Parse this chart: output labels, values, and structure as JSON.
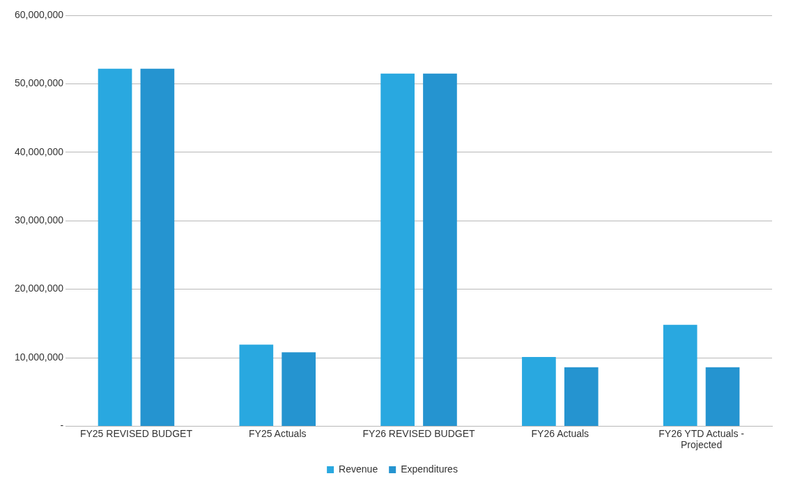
{
  "chart_data": {
    "type": "bar",
    "categories": [
      "FY25 REVISED BUDGET",
      "FY25 Actuals",
      "FY26 REVISED BUDGET",
      "FY26 Actuals",
      "FY26 YTD Actuals - Projected"
    ],
    "series": [
      {
        "name": "Revenue",
        "color": "#29a8e0",
        "values": [
          52200000,
          11900000,
          51500000,
          10100000,
          14800000
        ]
      },
      {
        "name": "Expenditures",
        "color": "#2594d0",
        "values": [
          52200000,
          10800000,
          51500000,
          8600000,
          8600000
        ]
      }
    ],
    "ylim": [
      0,
      60000000
    ],
    "yticks": [
      {
        "value": 0,
        "label": "-"
      },
      {
        "value": 10000000,
        "label": "10,000,000"
      },
      {
        "value": 20000000,
        "label": "20,000,000"
      },
      {
        "value": 30000000,
        "label": "30,000,000"
      },
      {
        "value": 40000000,
        "label": "40,000,000"
      },
      {
        "value": 50000000,
        "label": "50,000,000"
      },
      {
        "value": 60000000,
        "label": "60,000,000"
      }
    ],
    "grid": "y",
    "legend": "bottom"
  }
}
